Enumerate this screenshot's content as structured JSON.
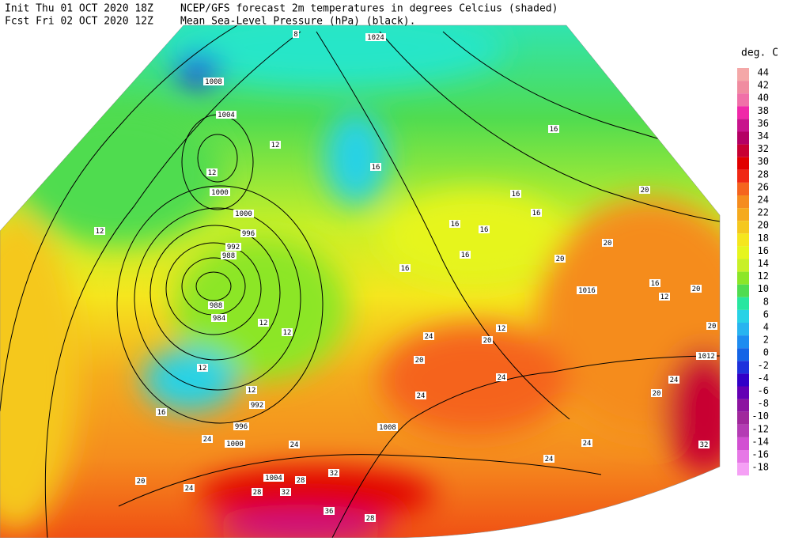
{
  "header": {
    "init": "Init  Thu 01 OCT 2020 18Z",
    "forecast": "Fcst Fri 02 OCT 2020 12Z",
    "title": "NCEP/GFS forecast 2m temperatures in degrees Celcius (shaded)",
    "subtitle": "Mean Sea-Level Pressure (hPa) (black)."
  },
  "legend": {
    "title": "deg. C",
    "items": [
      {
        "label": "44",
        "color": "#f4a8a8"
      },
      {
        "label": "42",
        "color": "#f08ca0"
      },
      {
        "label": "40",
        "color": "#f070a8"
      },
      {
        "label": "38",
        "color": "#f028a8"
      },
      {
        "label": "36",
        "color": "#c8148c"
      },
      {
        "label": "34",
        "color": "#b40064"
      },
      {
        "label": "32",
        "color": "#c80032"
      },
      {
        "label": "30",
        "color": "#e10000"
      },
      {
        "label": "28",
        "color": "#f02814"
      },
      {
        "label": "26",
        "color": "#f5641e"
      },
      {
        "label": "24",
        "color": "#f58c1e"
      },
      {
        "label": "22",
        "color": "#f5aa1e"
      },
      {
        "label": "20",
        "color": "#f5c81e"
      },
      {
        "label": "18",
        "color": "#f5e61e"
      },
      {
        "label": "16",
        "color": "#e6f51e"
      },
      {
        "label": "14",
        "color": "#c8f028"
      },
      {
        "label": "12",
        "color": "#8ce628"
      },
      {
        "label": "10",
        "color": "#50dc50"
      },
      {
        "label": "8",
        "color": "#28e6a0"
      },
      {
        "label": "6",
        "color": "#28d2e6"
      },
      {
        "label": "4",
        "color": "#28b4f0"
      },
      {
        "label": "2",
        "color": "#1e8cf0"
      },
      {
        "label": "0",
        "color": "#1464e6"
      },
      {
        "label": "-2",
        "color": "#1e32dc"
      },
      {
        "label": "-4",
        "color": "#3200c8"
      },
      {
        "label": "-6",
        "color": "#6400b4"
      },
      {
        "label": "-8",
        "color": "#8c14a0"
      },
      {
        "label": "-10",
        "color": "#a0289c"
      },
      {
        "label": "-12",
        "color": "#b43cb4"
      },
      {
        "label": "-14",
        "color": "#d250d2"
      },
      {
        "label": "-16",
        "color": "#e678e6"
      },
      {
        "label": "-18",
        "color": "#f5a0f5"
      }
    ]
  },
  "map": {
    "isobar_labels": [
      "1024",
      "8",
      "1008",
      "1004",
      "1000",
      "1000",
      "996",
      "992",
      "988",
      "988",
      "984",
      "992",
      "996",
      "1000",
      "1004",
      "1008",
      "1016",
      "1012"
    ],
    "temperature_labels": [
      "12",
      "12",
      "12",
      "16",
      "16",
      "16",
      "16",
      "16",
      "16",
      "16",
      "16",
      "20",
      "20",
      "20",
      "16",
      "20",
      "12",
      "20",
      "12",
      "12",
      "12",
      "12",
      "16",
      "24",
      "20",
      "12",
      "20",
      "24",
      "20",
      "24",
      "24",
      "24",
      "24",
      "24",
      "24",
      "28",
      "28",
      "32",
      "32",
      "36",
      "28",
      "32",
      "20",
      "24"
    ]
  }
}
